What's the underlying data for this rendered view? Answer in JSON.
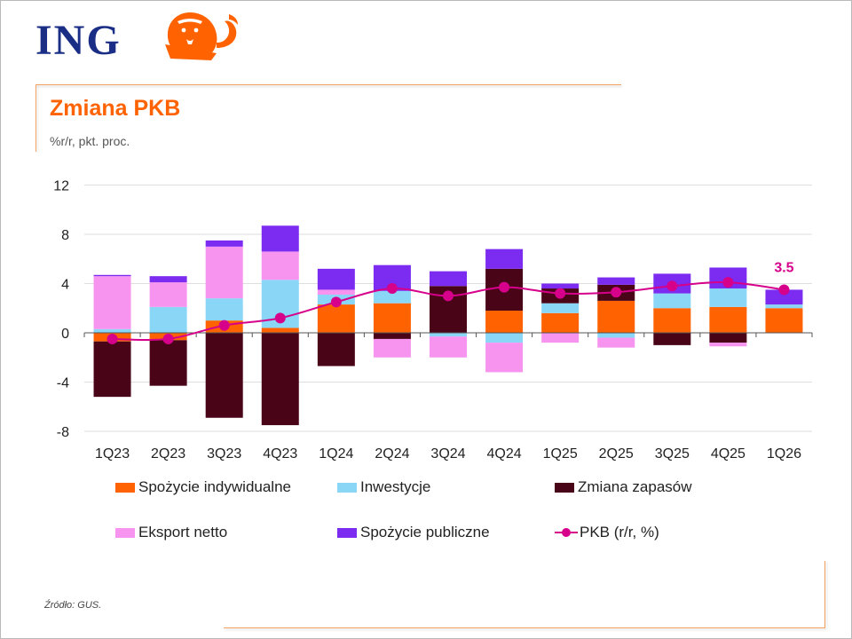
{
  "brand": {
    "logo_text": "ING",
    "colors": {
      "navy": "#1a2e86",
      "orange": "#ff6200"
    }
  },
  "header": {
    "title": "Zmiana PKB",
    "subtitle": "%r/r, pkt. proc."
  },
  "footer": {
    "source": "Źródło: GUS."
  },
  "chart_data": {
    "type": "bar",
    "stacked": true,
    "categories": [
      "1Q23",
      "2Q23",
      "3Q23",
      "4Q23",
      "1Q24",
      "2Q24",
      "3Q24",
      "4Q24",
      "1Q25",
      "2Q25",
      "3Q25",
      "4Q25",
      "1Q26"
    ],
    "ylim": [
      -8,
      12
    ],
    "yticks": [
      -8,
      -4,
      0,
      4,
      8,
      12
    ],
    "grid": true,
    "legend_position": "bottom",
    "series": [
      {
        "name": "Spożycie indywidualne",
        "kind": "bar",
        "color": "#ff6200",
        "values": [
          -0.7,
          -0.6,
          1.0,
          0.4,
          2.3,
          2.4,
          0.0,
          1.8,
          1.6,
          2.6,
          2.0,
          2.1,
          2.0
        ]
      },
      {
        "name": "Inwestycje",
        "kind": "bar",
        "color": "#89d6f7",
        "values": [
          0.3,
          2.1,
          1.8,
          3.9,
          0.8,
          1.0,
          -0.3,
          -0.8,
          0.8,
          -0.4,
          1.2,
          1.5,
          0.3
        ]
      },
      {
        "name": "Zmiana zapasów",
        "kind": "bar",
        "color": "#4a0418",
        "values": [
          -4.5,
          -3.7,
          -6.9,
          -7.5,
          -2.7,
          -0.5,
          3.8,
          3.4,
          1.2,
          1.3,
          -1.0,
          -0.8,
          0.0
        ]
      },
      {
        "name": "Eksport netto",
        "kind": "bar",
        "color": "#f794ef",
        "values": [
          4.3,
          2.0,
          4.2,
          2.3,
          0.4,
          -1.5,
          -1.7,
          -2.4,
          -0.8,
          -0.8,
          0.0,
          -0.3,
          0.0
        ]
      },
      {
        "name": "Spożycie publiczne",
        "kind": "bar",
        "color": "#7b2cf0",
        "values": [
          0.1,
          0.5,
          0.5,
          2.1,
          1.7,
          2.1,
          1.2,
          1.6,
          0.4,
          0.6,
          1.6,
          1.7,
          1.2
        ]
      },
      {
        "name": "PKB (r/r, %)",
        "kind": "line",
        "color": "#d6008b",
        "values": [
          -0.5,
          -0.5,
          0.6,
          1.2,
          2.5,
          3.6,
          3.0,
          3.7,
          3.2,
          3.3,
          3.8,
          4.1,
          3.5
        ]
      }
    ],
    "annotation": {
      "category": "1Q26",
      "label": "3.5"
    }
  }
}
